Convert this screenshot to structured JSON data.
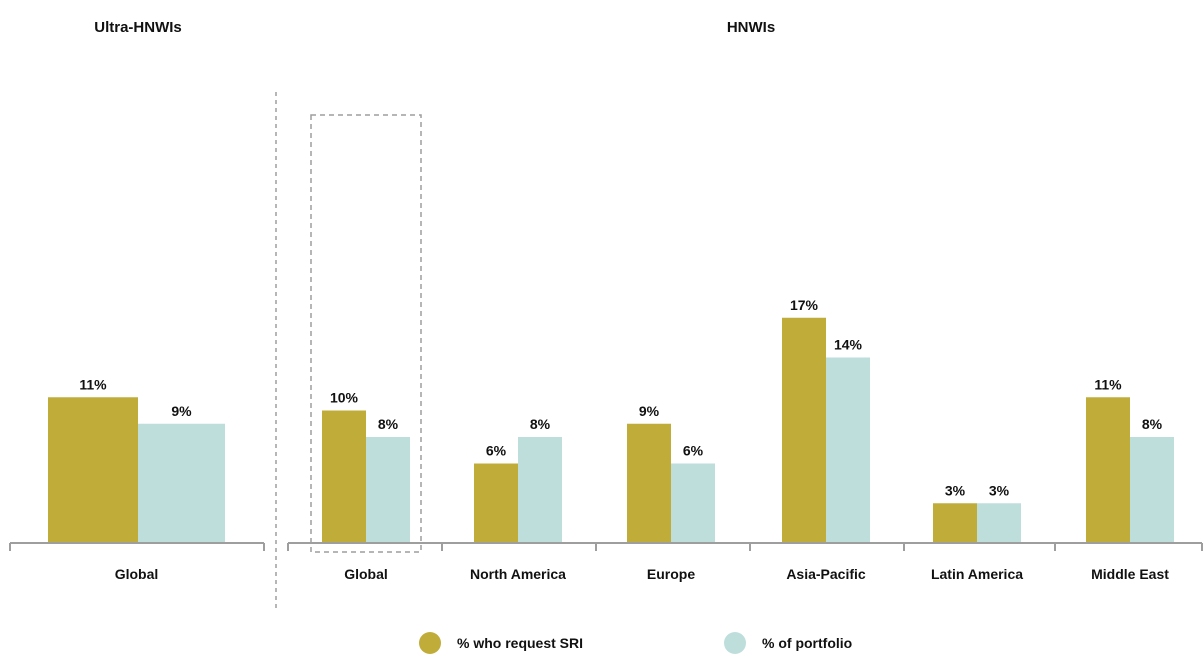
{
  "chart_data": {
    "type": "bar",
    "y_unit": "%",
    "ylim": [
      0,
      18
    ],
    "grid": false,
    "legend_position": "bottom-center",
    "panels": [
      {
        "title": "Ultra-HNWIs",
        "categories": [
          "Global"
        ],
        "series": [
          {
            "name": "% who request SRI",
            "values": [
              11
            ]
          },
          {
            "name": "% of portfolio",
            "values": [
              9
            ]
          }
        ],
        "data_labels": [
          [
            "11%"
          ],
          [
            "9%"
          ]
        ]
      },
      {
        "title": "HNWIs",
        "categories": [
          "Global",
          "North America",
          "Europe",
          "Asia-Pacific",
          "Latin America",
          "Middle East"
        ],
        "highlighted_category": "Global",
        "series": [
          {
            "name": "% who request SRI",
            "values": [
              10,
              6,
              9,
              17,
              3,
              11
            ]
          },
          {
            "name": "% of portfolio",
            "values": [
              8,
              8,
              6,
              14,
              3,
              8
            ]
          }
        ],
        "data_labels": [
          [
            "10%",
            "6%",
            "9%",
            "17%",
            "3%",
            "11%"
          ],
          [
            "8%",
            "8%",
            "6%",
            "14%",
            "3%",
            "8%"
          ]
        ]
      }
    ],
    "legend": [
      "% who request SRI",
      "% of portfolio"
    ]
  },
  "colors": {
    "sri": "#C0AD39",
    "portfolio": "#BEDEDC",
    "axis": "#9E9E9E",
    "highlight_box": "#9E9E9E",
    "text": "#111111"
  }
}
